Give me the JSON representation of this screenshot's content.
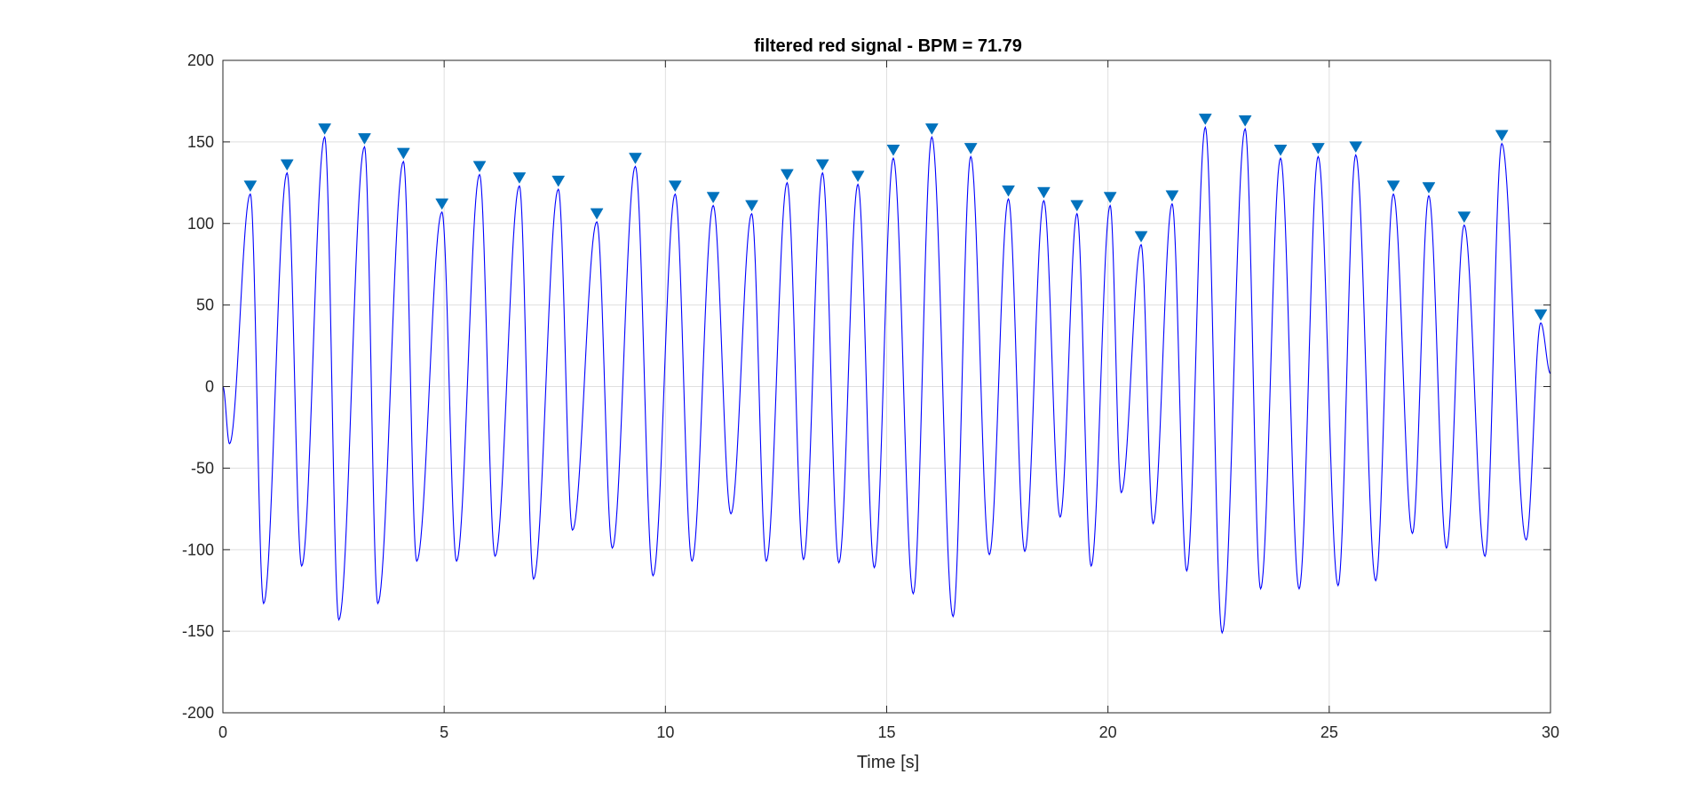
{
  "chart_data": {
    "type": "line",
    "title": "filtered red signal - BPM = 71.79",
    "xlabel": "Time [s]",
    "ylabel": "",
    "xlim": [
      0,
      30
    ],
    "ylim": [
      -200,
      200
    ],
    "xticks": [
      0,
      5,
      10,
      15,
      20,
      25,
      30
    ],
    "yticks": [
      200,
      150,
      100,
      50,
      0,
      -50,
      -100,
      -150,
      -200
    ],
    "grid": true,
    "signal_color": "#0000ff",
    "marker_color": "#0072bd",
    "signal_start": [
      [
        0,
        0
      ],
      [
        0.15,
        -35
      ]
    ],
    "signal_end": 8,
    "peaks": {
      "x": [
        0.62,
        1.45,
        2.3,
        3.2,
        4.08,
        4.95,
        5.8,
        6.7,
        7.58,
        8.45,
        9.32,
        10.22,
        11.08,
        11.95,
        12.75,
        13.55,
        14.35,
        15.15,
        16.02,
        16.9,
        17.75,
        18.55,
        19.3,
        20.05,
        20.75,
        21.45,
        22.2,
        23.1,
        23.9,
        24.75,
        25.6,
        26.45,
        27.25,
        28.05,
        28.9,
        29.78
      ],
      "y": [
        118,
        131,
        153,
        147,
        138,
        107,
        130,
        123,
        121,
        101,
        135,
        118,
        111,
        106,
        125,
        131,
        124,
        140,
        153,
        141,
        115,
        114,
        106,
        111,
        87,
        112,
        159,
        158,
        140,
        141,
        142,
        118,
        117,
        99,
        149,
        39
      ]
    },
    "troughs": {
      "x": [
        0.92,
        1.78,
        2.62,
        3.5,
        4.38,
        5.28,
        6.15,
        7.02,
        7.9,
        8.8,
        9.72,
        10.6,
        11.48,
        12.28,
        13.12,
        13.92,
        14.72,
        15.6,
        16.5,
        17.32,
        18.12,
        18.92,
        19.62,
        20.3,
        21.02,
        21.78,
        22.58,
        23.45,
        24.32,
        25.2,
        26.05,
        26.88,
        27.65,
        28.52,
        29.45
      ],
      "y": [
        -133,
        -110,
        -143,
        -133,
        -107,
        -107,
        -104,
        -118,
        -88,
        -99,
        -116,
        -107,
        -78,
        -107,
        -106,
        -108,
        -111,
        -127,
        -141,
        -103,
        -101,
        -80,
        -110,
        -65,
        -84,
        -113,
        -151,
        -124,
        -124,
        -122,
        -119,
        -90,
        -99,
        -104,
        -94
      ]
    }
  }
}
